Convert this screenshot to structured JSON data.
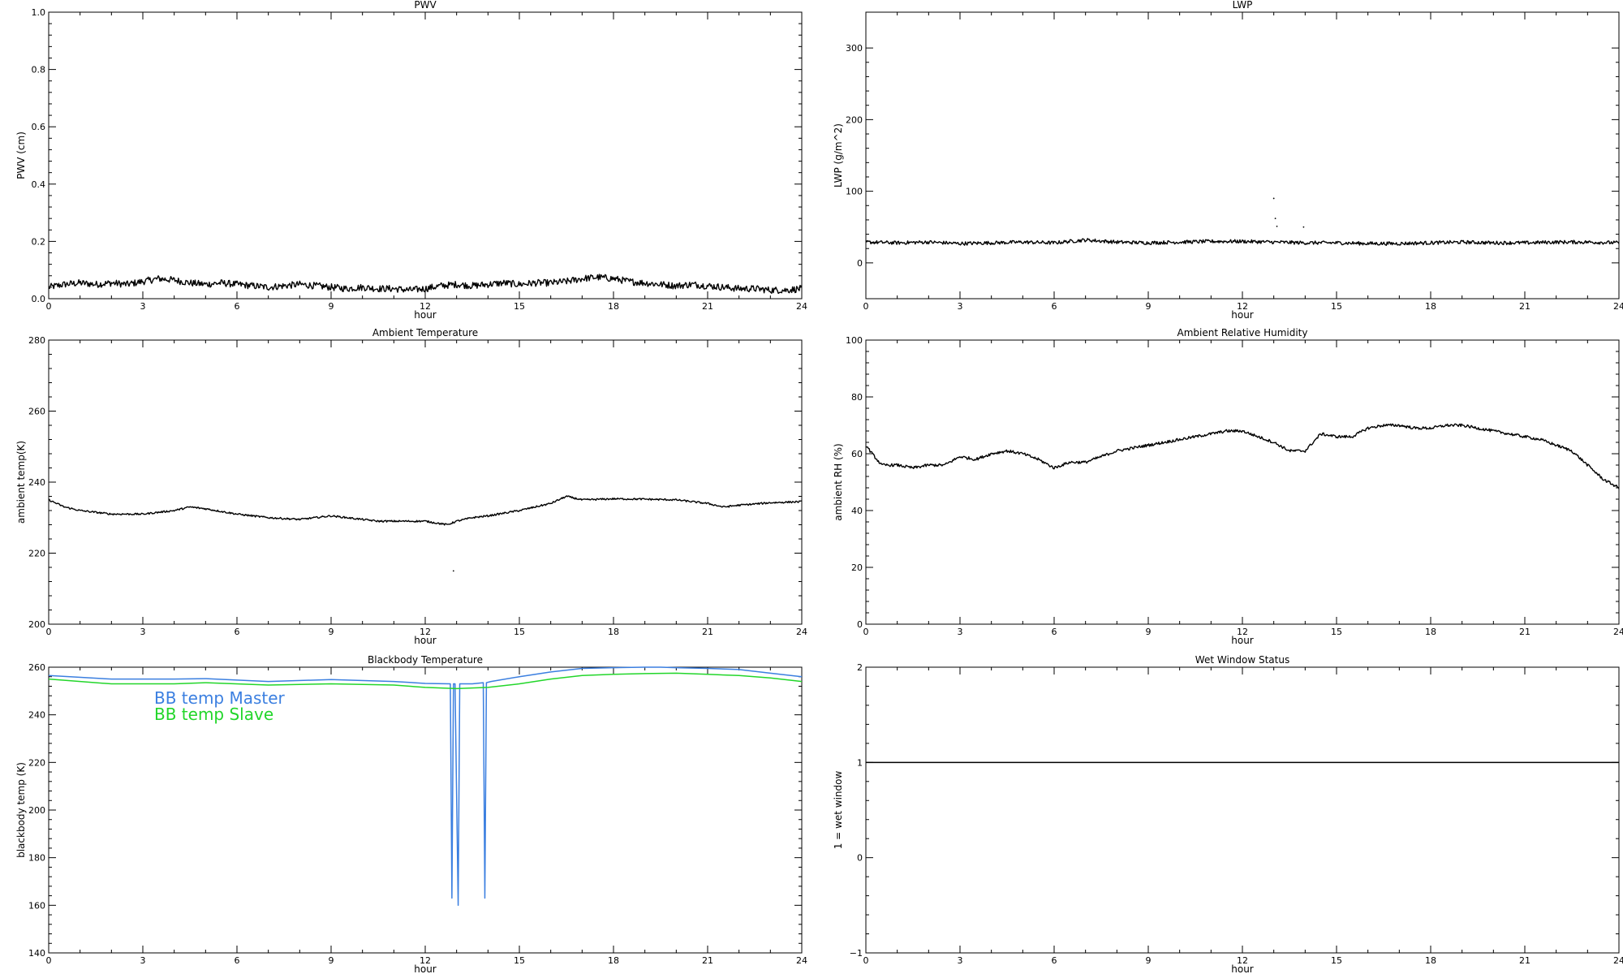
{
  "chart_data": [
    {
      "id": "pwv",
      "type": "line",
      "title": "PWV",
      "xlabel": "hour",
      "ylabel": "PWV (cm)",
      "xlim": [
        0,
        24
      ],
      "ylim": [
        0,
        1.0
      ],
      "xticks": [
        0,
        3,
        6,
        9,
        12,
        15,
        18,
        21,
        24
      ],
      "yticks": [
        0.0,
        0.2,
        0.4,
        0.6,
        0.8,
        1.0
      ],
      "ytick_labels": [
        "0.0",
        "0.2",
        "0.4",
        "0.6",
        "0.8",
        "1.0"
      ],
      "noise": 0.012,
      "series": [
        {
          "color": "#000000",
          "x": [
            0,
            0.5,
            1,
            1.5,
            2,
            2.5,
            3,
            3.5,
            4,
            4.5,
            5,
            5.5,
            6,
            6.5,
            7,
            7.5,
            8,
            8.5,
            9,
            9.5,
            10,
            10.5,
            11,
            11.5,
            12,
            12.5,
            13,
            13.5,
            14,
            14.5,
            15,
            15.5,
            16,
            16.5,
            17,
            17.5,
            18,
            18.5,
            19,
            19.5,
            20,
            20.5,
            21,
            21.5,
            22,
            22.5,
            23,
            23.5,
            24
          ],
          "y": [
            0.04,
            0.05,
            0.055,
            0.05,
            0.055,
            0.05,
            0.06,
            0.07,
            0.065,
            0.055,
            0.05,
            0.055,
            0.05,
            0.045,
            0.04,
            0.045,
            0.05,
            0.045,
            0.04,
            0.035,
            0.04,
            0.035,
            0.035,
            0.03,
            0.035,
            0.045,
            0.05,
            0.045,
            0.05,
            0.055,
            0.05,
            0.055,
            0.055,
            0.06,
            0.07,
            0.075,
            0.07,
            0.06,
            0.055,
            0.05,
            0.045,
            0.05,
            0.045,
            0.04,
            0.035,
            0.035,
            0.03,
            0.03,
            0.035
          ]
        }
      ]
    },
    {
      "id": "lwp",
      "type": "line",
      "title": "LWP",
      "xlabel": "hour",
      "ylabel": "LWP (g/m^2)",
      "xlim": [
        0,
        24
      ],
      "ylim": [
        -50,
        350
      ],
      "xticks": [
        0,
        3,
        6,
        9,
        12,
        15,
        18,
        21,
        24
      ],
      "yticks": [
        0,
        100,
        200,
        300
      ],
      "ytick_labels": [
        "0",
        "100",
        "200",
        "300"
      ],
      "noise": 2.5,
      "series": [
        {
          "color": "#000000",
          "x": [
            0,
            1,
            2,
            3,
            4,
            5,
            6,
            7,
            8,
            9,
            10,
            11,
            12,
            13,
            14,
            15,
            16,
            17,
            18,
            19,
            20,
            21,
            22,
            23,
            24
          ],
          "y": [
            29,
            28,
            29,
            27,
            28,
            29,
            28,
            32,
            29,
            28,
            29,
            30,
            30,
            29,
            28,
            28,
            27,
            27,
            28,
            29,
            28,
            28,
            29,
            29,
            28
          ]
        }
      ],
      "outliers": {
        "x": [
          13.0,
          13.05,
          13.1,
          13.95
        ],
        "y": [
          90,
          62,
          51,
          50
        ]
      }
    },
    {
      "id": "ambient-temp",
      "type": "line",
      "title": "Ambient Temperature",
      "xlabel": "hour",
      "ylabel": "ambient temp(K)",
      "xlim": [
        0,
        24
      ],
      "ylim": [
        200,
        280
      ],
      "xticks": [
        0,
        3,
        6,
        9,
        12,
        15,
        18,
        21,
        24
      ],
      "yticks": [
        200,
        220,
        240,
        260,
        280
      ],
      "ytick_labels": [
        "200",
        "220",
        "240",
        "260",
        "280"
      ],
      "noise": 0.25,
      "series": [
        {
          "color": "#000000",
          "x": [
            0,
            0.5,
            1,
            1.5,
            2,
            3,
            4,
            4.5,
            5,
            6,
            7,
            8,
            9,
            10,
            10.5,
            11,
            12,
            12.7,
            13,
            13.5,
            14,
            15,
            16,
            16.5,
            17,
            18,
            19,
            20,
            21,
            21.5,
            22,
            23,
            24
          ],
          "y": [
            235,
            233,
            232,
            231.5,
            231,
            231,
            232,
            233,
            232.5,
            231,
            230,
            229.5,
            230.5,
            229.5,
            229,
            229,
            229,
            228,
            229,
            230,
            230.5,
            232,
            234,
            236,
            235,
            235.3,
            235.2,
            235,
            234,
            233,
            233.5,
            234.2,
            234.5
          ]
        }
      ],
      "outliers": {
        "x": [
          12.9
        ],
        "y": [
          215
        ]
      }
    },
    {
      "id": "ambient-rh",
      "type": "line",
      "title": "Ambient Relative Humidity",
      "xlabel": "hour",
      "ylabel": "ambient RH (%)",
      "xlim": [
        0,
        24
      ],
      "ylim": [
        0,
        100
      ],
      "xticks": [
        0,
        3,
        6,
        9,
        12,
        15,
        18,
        21,
        24
      ],
      "yticks": [
        0,
        20,
        40,
        60,
        80,
        100
      ],
      "ytick_labels": [
        "0",
        "20",
        "40",
        "60",
        "80",
        "100"
      ],
      "noise": 0.5,
      "series": [
        {
          "color": "#000000",
          "x": [
            0,
            0.2,
            0.5,
            1,
            1.5,
            2,
            2.5,
            3,
            3.5,
            4,
            4.5,
            5,
            5.5,
            6,
            6.5,
            7,
            7.5,
            8,
            8.5,
            9,
            9.5,
            10,
            10.5,
            11,
            11.5,
            12,
            12.5,
            13,
            13.5,
            14,
            14.5,
            15,
            15.5,
            16,
            16.5,
            17,
            17.5,
            18,
            18.5,
            19,
            19.5,
            20,
            20.5,
            21,
            21.5,
            22,
            22.5,
            23,
            23.5,
            24
          ],
          "y": [
            63,
            60,
            56,
            56,
            55,
            56,
            56,
            59,
            58,
            60,
            61,
            60,
            58,
            55,
            57,
            57,
            59,
            61,
            62,
            63,
            64,
            65,
            66,
            67,
            68,
            68,
            66,
            64,
            61,
            61,
            67,
            66,
            66,
            69,
            70,
            70,
            69,
            69,
            70,
            70,
            69,
            68,
            67,
            66,
            65,
            63,
            61,
            56,
            51,
            48
          ]
        }
      ]
    },
    {
      "id": "blackbody-temp",
      "type": "line",
      "title": "Blackbody Temperature",
      "xlabel": "hour",
      "ylabel": "blackbody temp (K)",
      "xlim": [
        0,
        24
      ],
      "ylim": [
        140,
        260
      ],
      "xticks": [
        0,
        3,
        6,
        9,
        12,
        15,
        18,
        21,
        24
      ],
      "yticks": [
        140,
        160,
        180,
        200,
        220,
        240,
        260
      ],
      "ytick_labels": [
        "140",
        "160",
        "180",
        "200",
        "220",
        "240",
        "260"
      ],
      "noise": 0,
      "legend_position": "upper-left",
      "series": [
        {
          "name": "BB temp Master",
          "color": "#3b7fe0",
          "x": [
            0,
            2,
            4,
            5,
            7,
            9,
            11,
            12,
            12.8,
            12.85,
            12.9,
            12.95,
            13.05,
            13.1,
            13.15,
            13.25,
            13.5,
            13.85,
            13.9,
            13.95,
            14.1,
            15,
            16,
            17,
            18,
            19,
            19.5,
            20,
            21,
            22,
            23,
            24
          ],
          "y": [
            256.5,
            255,
            255,
            255.2,
            254,
            254.8,
            254,
            253.2,
            253,
            163,
            253,
            253,
            160,
            253,
            253,
            253,
            253,
            253.5,
            163,
            253.5,
            254,
            256,
            258,
            259.5,
            259.8,
            260,
            260.2,
            259.8,
            259.5,
            259,
            257.5,
            256
          ]
        },
        {
          "name": "BB temp Slave",
          "color": "#22d62a",
          "x": [
            0,
            2,
            4,
            5,
            7,
            9,
            11,
            12,
            13,
            14,
            15,
            16,
            17,
            18,
            19,
            20,
            21,
            22,
            23,
            24
          ],
          "y": [
            255,
            253,
            253,
            253.5,
            252.5,
            253,
            252.5,
            251.5,
            251,
            251.5,
            253,
            255,
            256.5,
            257,
            257.3,
            257.5,
            257,
            256.5,
            255.5,
            254
          ]
        }
      ]
    },
    {
      "id": "wet-window",
      "type": "line",
      "title": "Wet Window Status",
      "xlabel": "hour",
      "ylabel": "1 = wet window",
      "xlim": [
        0,
        24
      ],
      "ylim": [
        -1,
        2
      ],
      "xticks": [
        0,
        3,
        6,
        9,
        12,
        15,
        18,
        21,
        24
      ],
      "yticks": [
        -1,
        0,
        1,
        2
      ],
      "ytick_labels": [
        "−1",
        "0",
        "1",
        "2"
      ],
      "noise": 0,
      "series": [
        {
          "color": "#000000",
          "x": [
            0,
            24
          ],
          "y": [
            1,
            1
          ]
        }
      ]
    }
  ]
}
